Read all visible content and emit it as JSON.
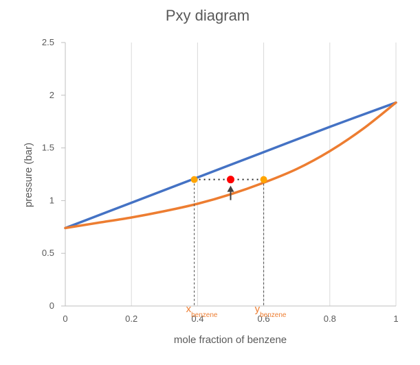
{
  "chart_data": {
    "type": "line",
    "title": "Pxy diagram",
    "xlabel": "mole fraction of benzene",
    "ylabel": "pressure (bar)",
    "xlim": [
      0,
      1
    ],
    "ylim": [
      0,
      2.5
    ],
    "x_ticks": [
      "0",
      "0.2",
      "0.4",
      "0.6",
      "0.8",
      "1"
    ],
    "y_ticks": [
      "0",
      "0.5",
      "1",
      "1.5",
      "2",
      "2.5"
    ],
    "grid": "vertical",
    "legend": "none",
    "series": [
      {
        "color": "#4472C4",
        "x": [
          0,
          0.2,
          0.4,
          0.6,
          0.8,
          1
        ],
        "y": [
          0.74,
          0.98,
          1.22,
          1.46,
          1.7,
          1.93
        ]
      },
      {
        "color": "#ED7D31",
        "x": [
          0,
          0.1,
          0.2,
          0.3,
          0.4,
          0.5,
          0.6,
          0.7,
          0.8,
          0.9,
          1
        ],
        "y": [
          0.74,
          0.79,
          0.84,
          0.9,
          0.97,
          1.06,
          1.17,
          1.3,
          1.47,
          1.68,
          1.93
        ]
      }
    ],
    "annotations": {
      "pressure": 1.2,
      "liquid_point": {
        "x": 0.39,
        "y": 1.2,
        "color": "#FFA500"
      },
      "vapor_point": {
        "x": 0.6,
        "y": 1.2,
        "color": "#FFA500"
      },
      "mixture_point": {
        "x": 0.5,
        "y": 1.2,
        "color": "#FF0000"
      },
      "x_label": {
        "main": "x",
        "sub": "benzene",
        "color": "#ED7D31"
      },
      "y_label": {
        "main": "y",
        "sub": "benzene",
        "color": "#ED7D31"
      }
    }
  }
}
